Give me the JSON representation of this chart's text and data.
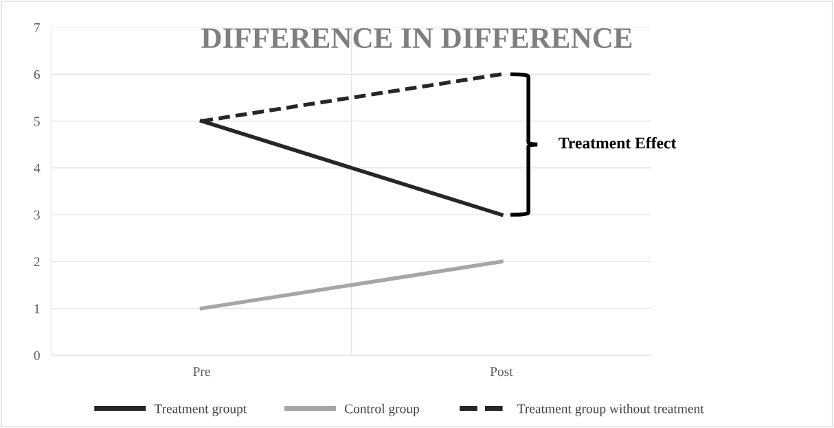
{
  "chart_data": {
    "type": "line",
    "title": "DIFFERENCE IN DIFFERENCE",
    "categories": [
      "Pre",
      "Post"
    ],
    "series": [
      {
        "name": "Treatment groupt",
        "color": "#262626",
        "values": [
          5,
          3
        ],
        "line_style": "solid"
      },
      {
        "name": "Control group",
        "color": "#a6a6a6",
        "values": [
          1,
          2
        ],
        "line_style": "solid"
      },
      {
        "name": "Treatment group without treatment",
        "color": "#262626",
        "values": [
          5,
          6
        ],
        "line_style": "dashed"
      }
    ],
    "ylim": [
      0,
      7
    ],
    "yticks": [
      0,
      1,
      2,
      3,
      4,
      5,
      6,
      7
    ],
    "grid": true,
    "legend": "bottom",
    "marker": "none",
    "annotations": [
      "Treatment Effect"
    ]
  }
}
